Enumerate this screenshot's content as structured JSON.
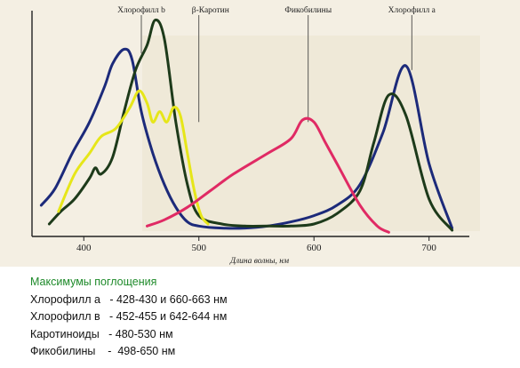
{
  "chart_data": {
    "type": "line",
    "xlabel": "Длина волны, нм",
    "ylabel": "",
    "title": "",
    "xlim": [
      355,
      735
    ],
    "ylim": [
      0,
      100
    ],
    "xticks": [
      400,
      500,
      600,
      700
    ],
    "grid": false,
    "annotations": [
      {
        "label": "Хлорофилл b",
        "x": 450
      },
      {
        "label": "β-Каротин",
        "x": 500
      },
      {
        "label": "Фикобилины",
        "x": 595
      },
      {
        "label": "Хлорофилл a",
        "x": 685
      }
    ],
    "series": [
      {
        "key": "chl_b",
        "color": "#1c2a7a",
        "x": [
          363,
          375,
          390,
          405,
          418,
          425,
          435,
          442,
          450,
          460,
          470,
          480,
          490,
          500,
          520,
          540,
          560,
          580,
          600,
          620,
          640,
          660,
          680,
          700,
          720
        ],
        "y": [
          15,
          23,
          40,
          55,
          72,
          83,
          90,
          85,
          60,
          40,
          25,
          14,
          7,
          5,
          4,
          4,
          5,
          7,
          10,
          15,
          25,
          50,
          82,
          35,
          4
        ]
      },
      {
        "key": "chl_a",
        "color": "#1d3a1a",
        "x": [
          370,
          380,
          392,
          405,
          410,
          415,
          425,
          435,
          445,
          455,
          462,
          470,
          480,
          490,
          500,
          520,
          540,
          560,
          580,
          600,
          620,
          640,
          652,
          665,
          680,
          700,
          720
        ],
        "y": [
          6,
          12,
          18,
          28,
          33,
          30,
          38,
          60,
          80,
          92,
          104,
          95,
          55,
          25,
          10,
          6,
          5,
          5,
          5,
          6,
          11,
          22,
          45,
          68,
          58,
          18,
          3
        ]
      },
      {
        "key": "carotenoid",
        "color": "#e6e619",
        "x": [
          378,
          392,
          405,
          415,
          428,
          440,
          448,
          455,
          460,
          466,
          472,
          478,
          484,
          490,
          496,
          502,
          508
        ],
        "y": [
          12,
          30,
          40,
          48,
          52,
          62,
          70,
          64,
          55,
          60,
          55,
          62,
          58,
          40,
          22,
          10,
          6
        ]
      },
      {
        "key": "phycobilin",
        "color": "#e02a64",
        "x": [
          455,
          470,
          490,
          510,
          530,
          560,
          580,
          590,
          600,
          610,
          620,
          640,
          655,
          665
        ],
        "y": [
          5,
          8,
          14,
          22,
          30,
          40,
          47,
          56,
          55,
          45,
          35,
          15,
          5,
          2
        ]
      }
    ]
  },
  "legend": {
    "header": "Максимумы поглощения",
    "rows": [
      "Хлорофилл а   - 428-430 и 660-663 нм",
      "Хлорофилл в   - 452-455 и 642-644 нм",
      "Каротиноиды   - 480-530 нм",
      "Фикобилины    -  498-650 нм"
    ]
  }
}
